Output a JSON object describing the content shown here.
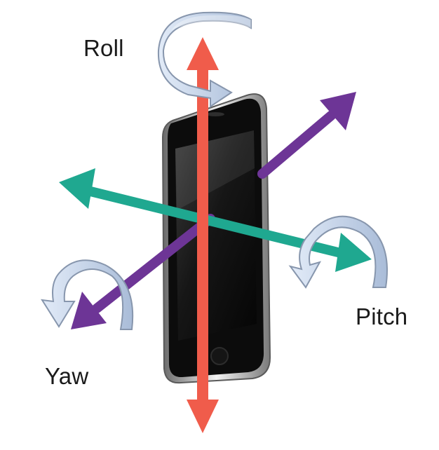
{
  "labels": {
    "roll": "Roll",
    "pitch": "Pitch",
    "yaw": "Yaw"
  },
  "colors": {
    "vertical_axis": "#f05c4b",
    "teal_axis": "#1fa890",
    "purple_axis": "#6d3596",
    "rotation_arrow_light": "#c5d5ec",
    "rotation_arrow_dark": "#8796ad",
    "phone_body": "#111111",
    "phone_bezel": "#d9d9d9"
  },
  "icons": {
    "device": "smartphone-icon",
    "roll_rotation": "rotation-arrow-icon",
    "pitch_rotation": "rotation-arrow-icon",
    "yaw_rotation": "rotation-arrow-icon"
  }
}
